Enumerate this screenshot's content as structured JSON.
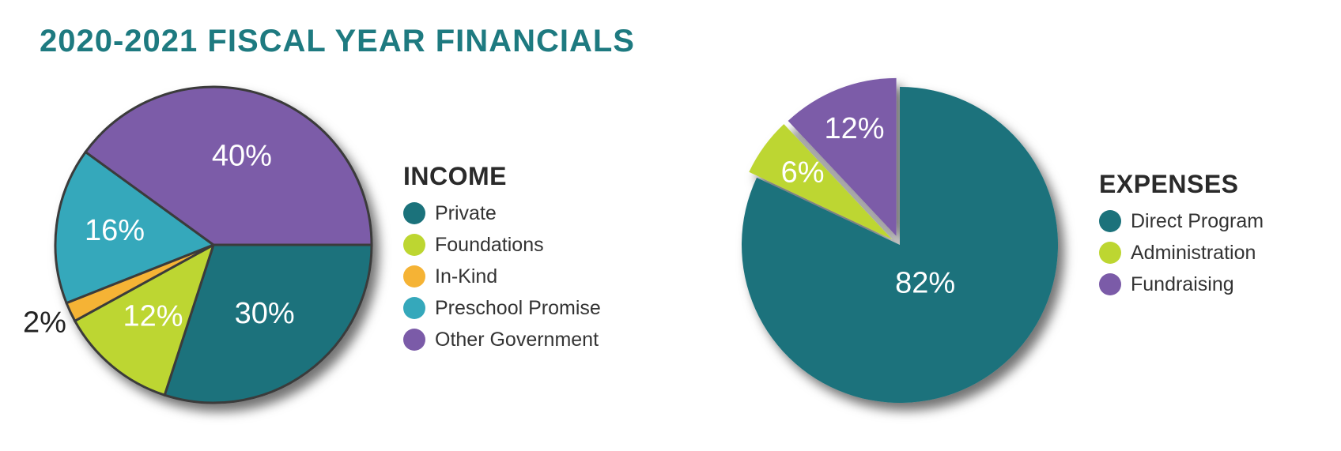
{
  "title": "2020-2021 FISCAL YEAR FINANCIALS",
  "chart_data": [
    {
      "type": "pie",
      "title": "INCOME",
      "labels": [
        "Private",
        "Foundations",
        "In-Kind",
        "Preschool Promise",
        "Other Government"
      ],
      "values": [
        30,
        12,
        2,
        16,
        40
      ],
      "value_labels": [
        "30%",
        "12%",
        "2%",
        "16%",
        "40%"
      ],
      "colors": [
        "#1b727b",
        "#bdd631",
        "#f5b335",
        "#35a8bb",
        "#7b5ba8"
      ],
      "legend_position": "right"
    },
    {
      "type": "pie",
      "title": "EXPENSES",
      "labels": [
        "Direct Program",
        "Administration",
        "Fundraising"
      ],
      "values": [
        82,
        6,
        12
      ],
      "value_labels": [
        "82%",
        "6%",
        "12%"
      ],
      "colors": [
        "#1b727b",
        "#bdd631",
        "#7b5ba8"
      ],
      "legend_position": "right"
    }
  ]
}
